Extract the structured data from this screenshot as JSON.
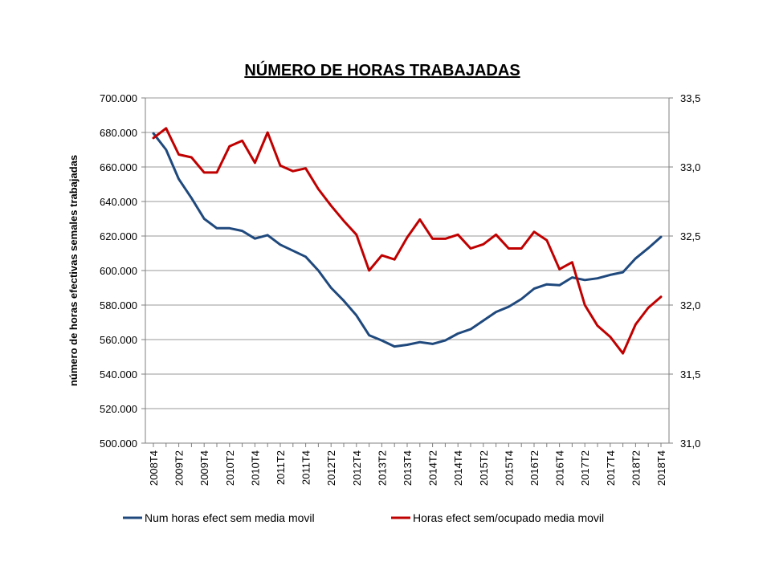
{
  "chart_data": {
    "type": "line",
    "title": "NÚMERO DE HORAS TRABAJADAS",
    "ylabel": "número de horas efectivas semales trabajadas",
    "ylim": [
      500000,
      700000
    ],
    "y2lim": [
      31.0,
      33.5
    ],
    "yticks": [
      "500.000",
      "520.000",
      "540.000",
      "560.000",
      "580.000",
      "600.000",
      "620.000",
      "640.000",
      "660.000",
      "680.000",
      "700.000"
    ],
    "y2ticks": [
      "31,0",
      "31,5",
      "32,0",
      "32,5",
      "33,0",
      "33,5"
    ],
    "x": [
      "2008T4",
      "2009T1",
      "2009T2",
      "2009T3",
      "2009T4",
      "2010T1",
      "2010T2",
      "2010T3",
      "2010T4",
      "2011T1",
      "2011T2",
      "2011T3",
      "2011T4",
      "2012T1",
      "2012T2",
      "2012T3",
      "2012T4",
      "2013T1",
      "2013T2",
      "2013T3",
      "2013T4",
      "2014T1",
      "2014T2",
      "2014T3",
      "2014T4",
      "2015T1",
      "2015T2",
      "2015T3",
      "2015T4",
      "2016T1",
      "2016T2",
      "2016T3",
      "2016T4",
      "2017T1",
      "2017T2",
      "2017T3",
      "2017T4",
      "2018T1",
      "2018T2",
      "2018T3",
      "2018T4"
    ],
    "xticklabels": [
      "2008T4",
      "2009T2",
      "2009T4",
      "2010T2",
      "2010T4",
      "2011T2",
      "2011T4",
      "2012T2",
      "2012T4",
      "2013T2",
      "2013T4",
      "2014T2",
      "2014T4",
      "2015T2",
      "2015T4",
      "2016T2",
      "2016T4",
      "2017T2",
      "2017T4",
      "2018T2",
      "2018T4"
    ],
    "grid": true,
    "legend_position": "bottom",
    "series": [
      {
        "name": "Num horas efect sem media movil",
        "axis": "left",
        "color": "#1F497D",
        "values": [
          679500,
          670000,
          653000,
          642000,
          630000,
          624500,
          624500,
          623000,
          618500,
          620500,
          615000,
          611500,
          608000,
          600000,
          590000,
          582500,
          574000,
          562500,
          559500,
          556000,
          557000,
          558500,
          557500,
          559500,
          563500,
          566000,
          571000,
          576000,
          579000,
          583500,
          589500,
          592000,
          591500,
          596000,
          594500,
          595500,
          597500,
          599000,
          607000,
          613000,
          619500
        ]
      },
      {
        "name": "Horas efect sem/ocupado media movil",
        "axis": "right",
        "color": "#C00000",
        "values": [
          33.21,
          33.28,
          33.09,
          33.07,
          32.96,
          32.96,
          33.15,
          33.19,
          33.03,
          33.25,
          33.01,
          32.97,
          32.99,
          32.84,
          32.72,
          32.61,
          32.51,
          32.25,
          32.36,
          32.33,
          32.49,
          32.62,
          32.48,
          32.48,
          32.51,
          32.41,
          32.44,
          32.51,
          32.41,
          32.41,
          32.53,
          32.47,
          32.26,
          32.31,
          32.0,
          31.85,
          31.77,
          31.65,
          31.86,
          31.98,
          32.06
        ]
      }
    ]
  }
}
